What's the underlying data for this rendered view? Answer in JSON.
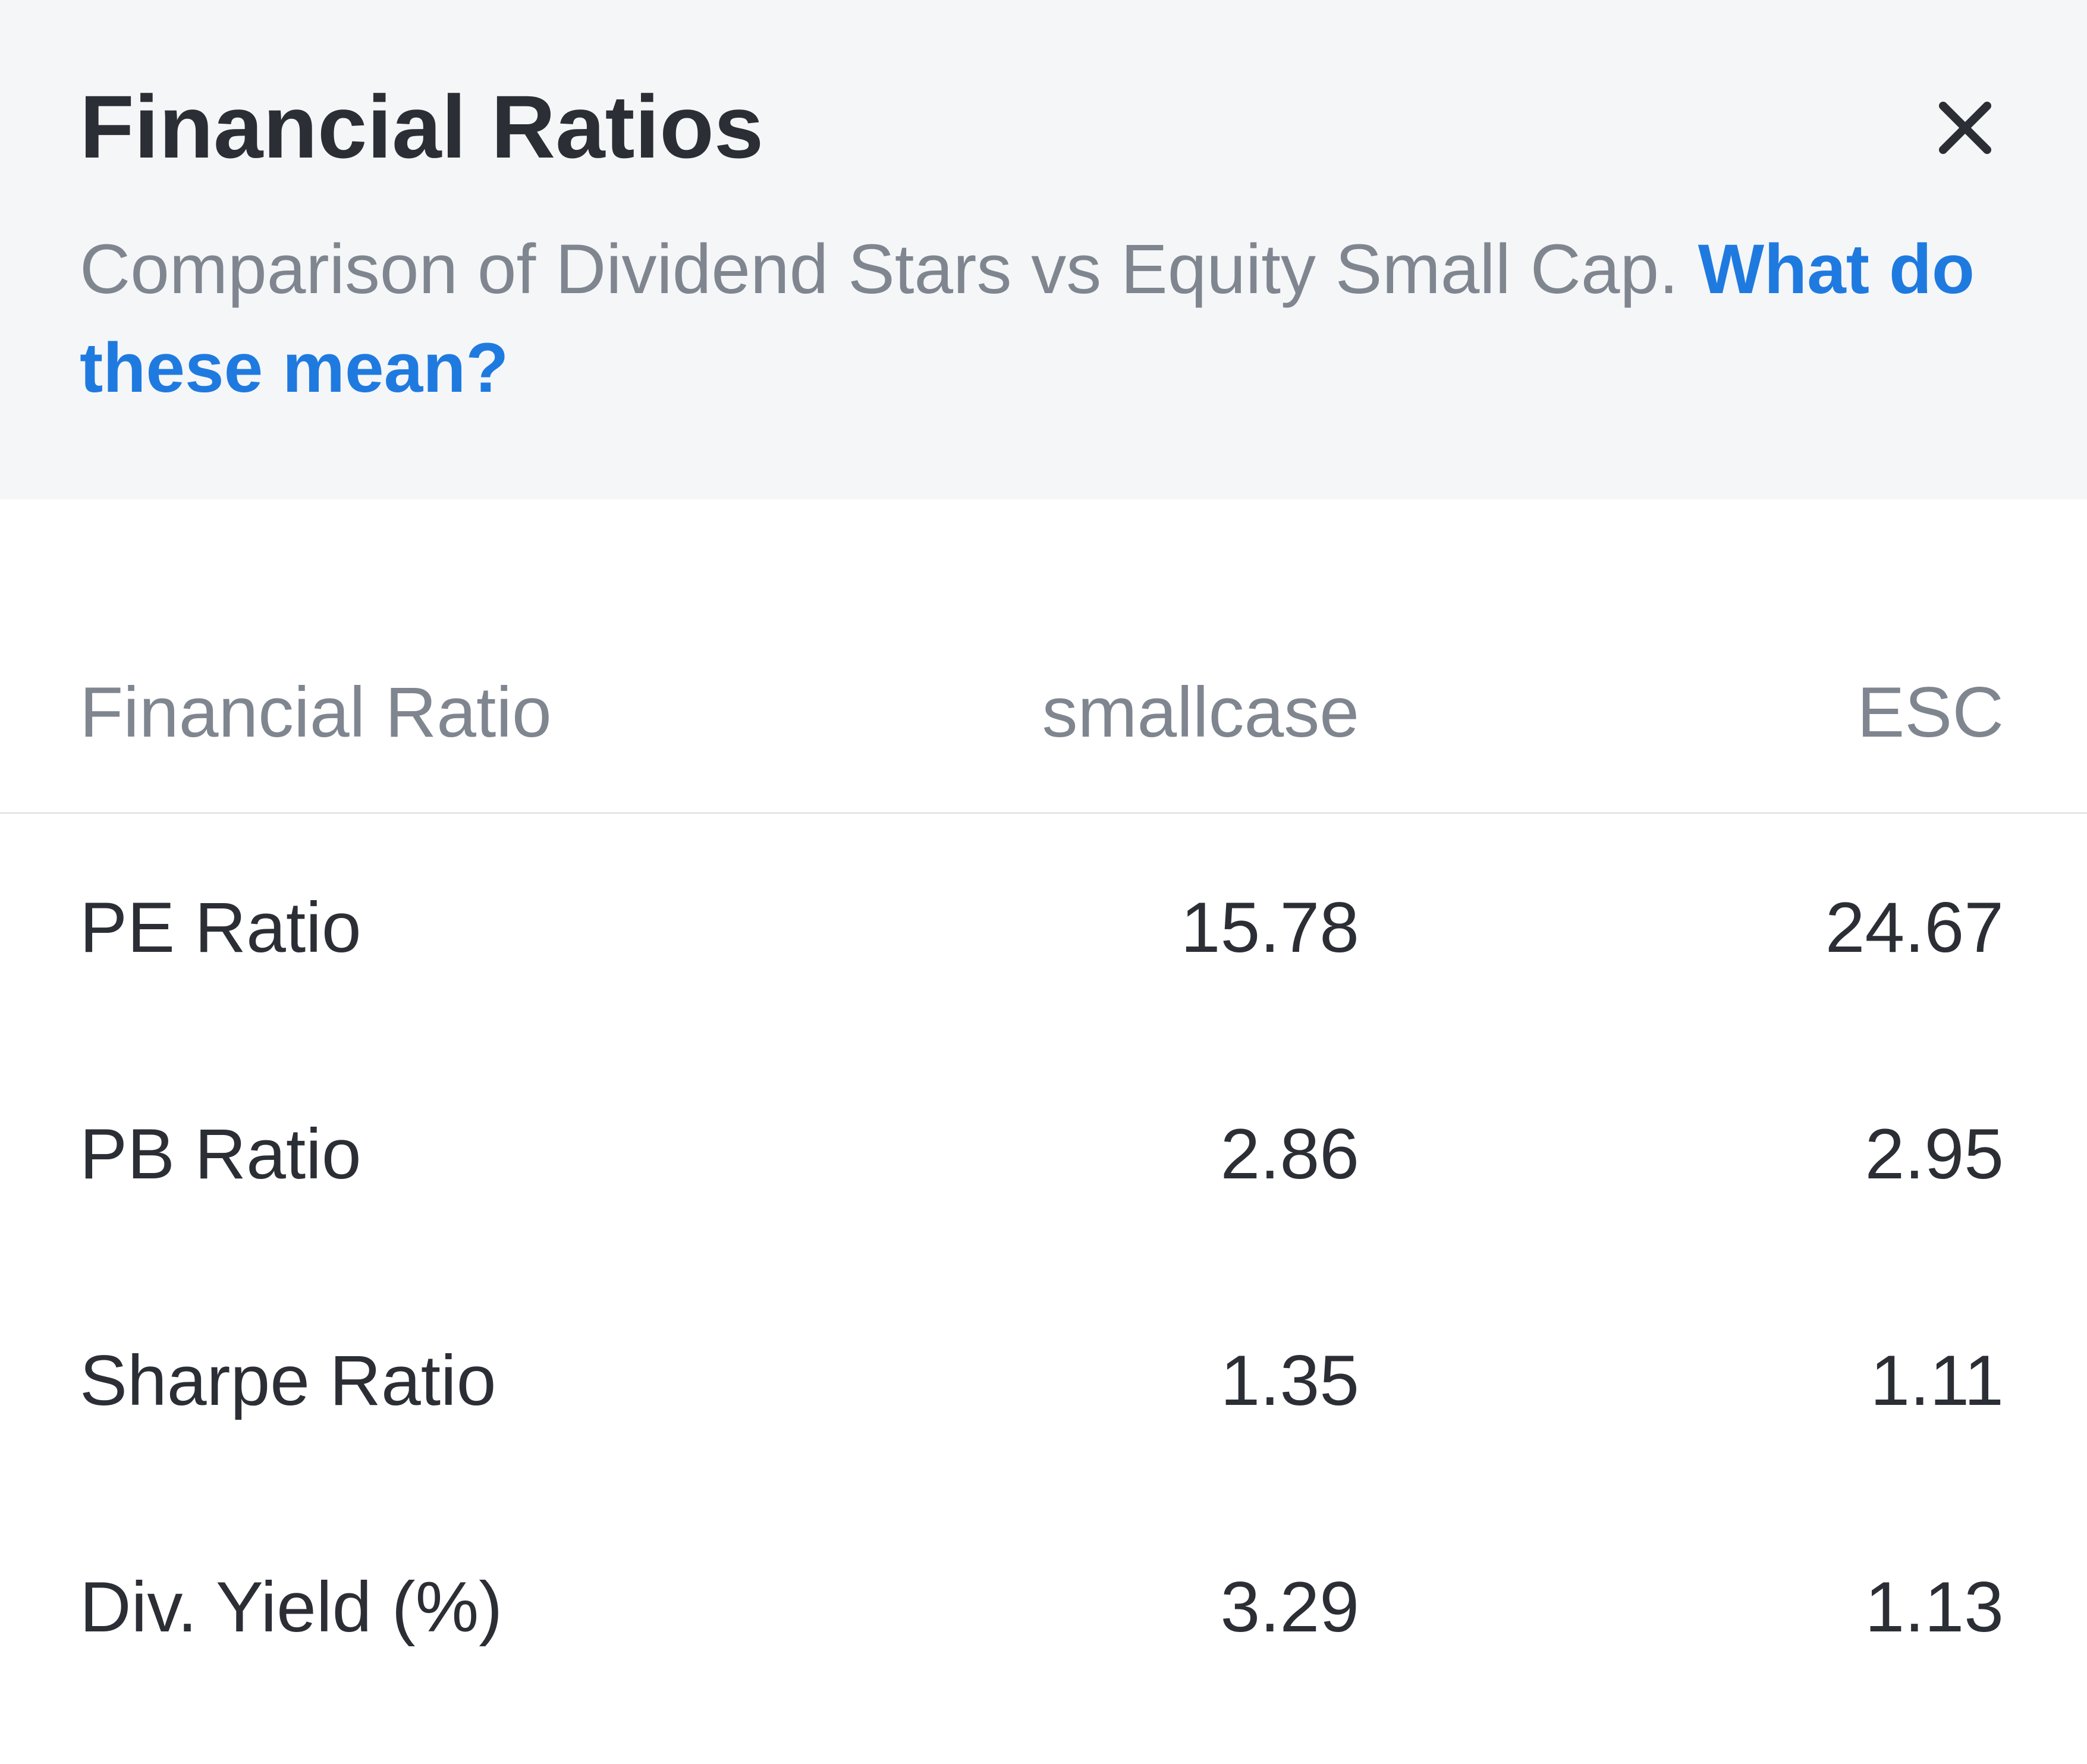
{
  "header": {
    "title": "Financial Ratios",
    "subtitle": "Comparison of Dividend Stars vs Equity Small Cap.",
    "help_link": "What do these mean?",
    "close_icon": "close-icon"
  },
  "table": {
    "columns": [
      "Financial Ratio",
      "smallcase",
      "ESC"
    ],
    "rows": [
      {
        "name": "PE Ratio",
        "smallcase": "15.78",
        "index": "24.67"
      },
      {
        "name": "PB Ratio",
        "smallcase": "2.86",
        "index": "2.95"
      },
      {
        "name": "Sharpe Ratio",
        "smallcase": "1.35",
        "index": "1.11"
      },
      {
        "name": "Div. Yield (%)",
        "smallcase": "3.29",
        "index": "1.13"
      }
    ]
  },
  "colors": {
    "header_bg": "#f5f6f8",
    "text_primary": "#2b2f35",
    "text_secondary": "#80868f",
    "link": "#1f7ae0",
    "divider": "#e3e5e8"
  }
}
